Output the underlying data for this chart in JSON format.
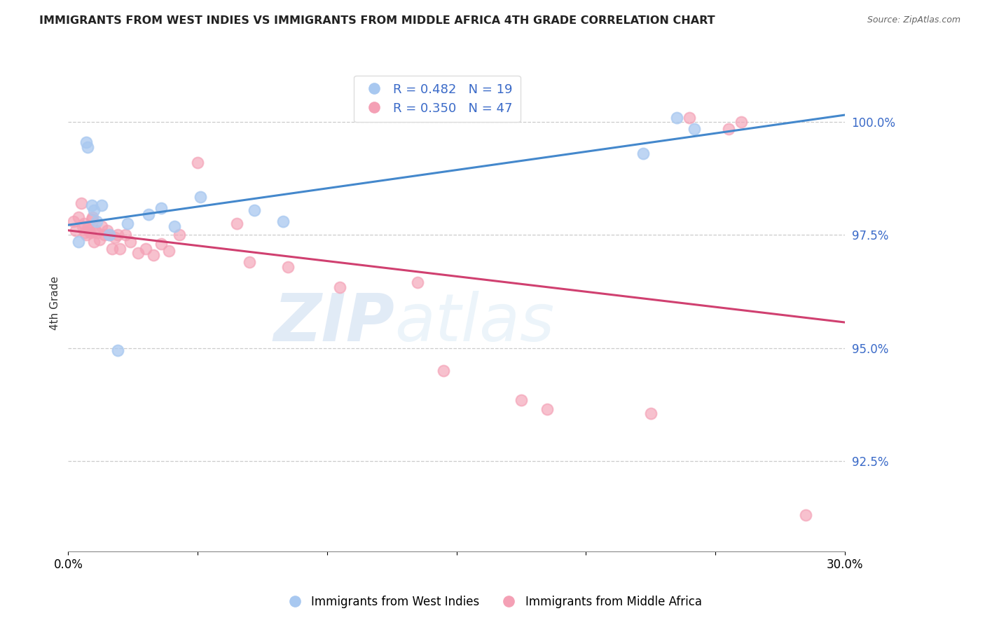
{
  "title": "IMMIGRANTS FROM WEST INDIES VS IMMIGRANTS FROM MIDDLE AFRICA 4TH GRADE CORRELATION CHART",
  "source": "Source: ZipAtlas.com",
  "ylabel": "4th Grade",
  "legend_label1": "Immigrants from West Indies",
  "legend_label2": "Immigrants from Middle Africa",
  "R1": 0.482,
  "N1": 19,
  "R2": 0.35,
  "N2": 47,
  "color1": "#a8c8f0",
  "color2": "#f4a0b5",
  "line_color1": "#4488cc",
  "line_color2": "#d04070",
  "xlim": [
    0.0,
    30.0
  ],
  "ylim": [
    90.5,
    101.5
  ],
  "yticks": [
    92.5,
    95.0,
    97.5,
    100.0
  ],
  "ytick_labels": [
    "92.5%",
    "95.0%",
    "97.5%",
    "100.0%"
  ],
  "xtick_labels": [
    "0.0%",
    "",
    "",
    "",
    "",
    "",
    "30.0%"
  ],
  "watermark_zip": "ZIP",
  "watermark_atlas": "atlas",
  "scatter1_x": [
    0.4,
    0.7,
    0.75,
    0.9,
    1.0,
    1.1,
    1.3,
    1.6,
    1.9,
    2.3,
    3.1,
    3.6,
    4.1,
    5.1,
    7.2,
    8.3,
    22.2,
    23.5,
    24.2
  ],
  "scatter1_y": [
    97.35,
    99.55,
    99.45,
    98.15,
    98.05,
    97.8,
    98.15,
    97.5,
    94.95,
    97.75,
    97.95,
    98.1,
    97.7,
    98.35,
    98.05,
    97.8,
    99.3,
    100.1,
    99.85
  ],
  "scatter2_x": [
    0.2,
    0.3,
    0.4,
    0.5,
    0.55,
    0.6,
    0.65,
    0.7,
    0.75,
    0.8,
    0.85,
    0.9,
    0.95,
    1.0,
    1.05,
    1.1,
    1.2,
    1.3,
    1.4,
    1.5,
    1.6,
    1.7,
    1.8,
    1.9,
    2.0,
    2.2,
    2.4,
    2.7,
    3.0,
    3.3,
    3.6,
    3.9,
    4.3,
    5.0,
    6.5,
    7.0,
    8.5,
    10.5,
    13.5,
    14.5,
    17.5,
    18.5,
    22.5,
    24.0,
    25.5,
    26.0,
    28.5
  ],
  "scatter2_y": [
    97.8,
    97.6,
    97.9,
    98.2,
    97.7,
    97.75,
    97.55,
    97.5,
    97.65,
    97.6,
    97.55,
    97.85,
    97.9,
    97.35,
    97.6,
    97.55,
    97.4,
    97.7,
    97.5,
    97.6,
    97.5,
    97.2,
    97.45,
    97.5,
    97.2,
    97.5,
    97.35,
    97.1,
    97.2,
    97.05,
    97.3,
    97.15,
    97.5,
    99.1,
    97.75,
    96.9,
    96.8,
    96.35,
    96.45,
    94.5,
    93.85,
    93.65,
    93.55,
    100.1,
    99.85,
    100.0,
    91.3
  ]
}
